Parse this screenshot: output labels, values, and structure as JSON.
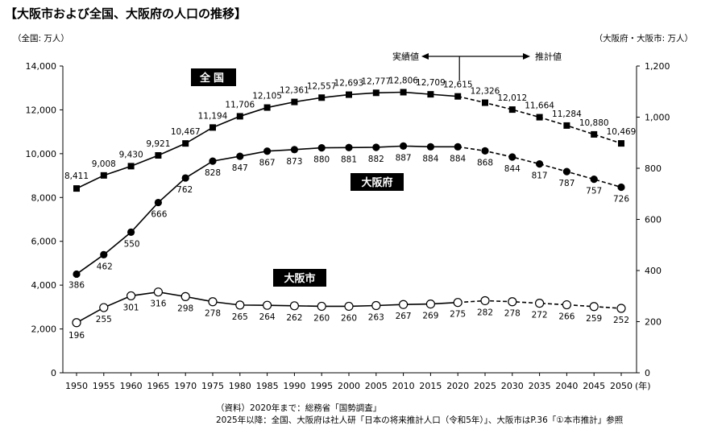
{
  "page": {
    "title": "【大阪市および全国、大阪府の人口の推移】",
    "unit_left": "（全国: 万人）",
    "unit_right": "（大阪府・大阪市: 万人）",
    "source_line1": "（資料）2020年まで：総務省「国勢調査」",
    "source_line2": "2025年以降：全国、大阪府は社人研「日本の将来推計人口（令和5年）」、大阪市はP.36「①本市推計」参照"
  },
  "chart_data": {
    "type": "line",
    "x": [
      1950,
      1955,
      1960,
      1965,
      1970,
      1975,
      1980,
      1985,
      1990,
      1995,
      2000,
      2005,
      2010,
      2015,
      2020,
      2025,
      2030,
      2035,
      2040,
      2045,
      2050
    ],
    "x_suffix": "(年)",
    "y_left": {
      "min": 0,
      "max": 14000,
      "ticks": [
        "0",
        "2,000",
        "4,000",
        "6,000",
        "8,000",
        "10,000",
        "12,000",
        "14,000"
      ]
    },
    "y_right": {
      "min": 0,
      "max": 1200,
      "ticks": [
        "0",
        "200",
        "400",
        "600",
        "800",
        "1,000",
        "1,200"
      ]
    },
    "actual_label": "実績値",
    "estimate_label": "推計値",
    "estimate_from": 2020,
    "series": [
      {
        "name": "全国",
        "axis": "left",
        "marker": "square",
        "label_bg": "#000000",
        "label_color": "#ffffff",
        "values": [
          8411,
          9008,
          9430,
          9921,
          10467,
          11194,
          11706,
          12105,
          12361,
          12557,
          12693,
          12777,
          12806,
          12709,
          12615,
          12326,
          12012,
          11664,
          11284,
          10880,
          10469
        ],
        "labels": [
          "8,411",
          "9,008",
          "9,430",
          "9,921",
          "10,467",
          "11,194",
          "11,706",
          "12,105",
          "12,361",
          "12,557",
          "12,693",
          "12,777",
          "12,806",
          "12,709",
          "12,615",
          "12,326",
          "12,012",
          "11,664",
          "11,284",
          "10,880",
          "10,469"
        ]
      },
      {
        "name": "大阪府",
        "axis": "right",
        "marker": "circle-filled",
        "label_bg": "#000000",
        "label_color": "#ffffff",
        "values": [
          386,
          462,
          550,
          666,
          762,
          828,
          847,
          867,
          873,
          880,
          881,
          882,
          887,
          884,
          884,
          868,
          844,
          817,
          787,
          757,
          726
        ],
        "labels": [
          "386",
          "462",
          "550",
          "666",
          "762",
          "828",
          "847",
          "867",
          "873",
          "880",
          "881",
          "882",
          "887",
          "884",
          "884",
          "868",
          "844",
          "817",
          "787",
          "757",
          "726"
        ]
      },
      {
        "name": "大阪市",
        "axis": "right",
        "marker": "circle-open",
        "label_bg": "#000000",
        "label_color": "#ffffff",
        "values": [
          196,
          255,
          301,
          316,
          298,
          278,
          265,
          264,
          262,
          260,
          260,
          263,
          267,
          269,
          275,
          282,
          278,
          272,
          266,
          259,
          252
        ],
        "labels": [
          "196",
          "255",
          "301",
          "316",
          "298",
          "278",
          "265",
          "264",
          "262",
          "260",
          "260",
          "263",
          "267",
          "269",
          "275",
          "282",
          "278",
          "272",
          "266",
          "259",
          "252"
        ]
      }
    ]
  }
}
